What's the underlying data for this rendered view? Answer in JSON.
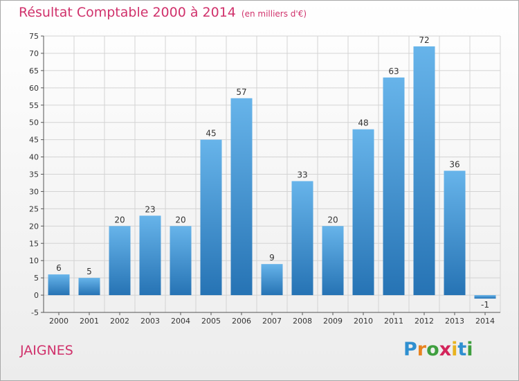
{
  "title": "Résultat Comptable 2000 à 2014",
  "subtitle": "(en milliers d'€)",
  "commune": "JAIGNES",
  "logo": {
    "letters": [
      "P",
      "r",
      "o",
      "x",
      "i",
      "t",
      "i"
    ],
    "colors": [
      "#2f8fd0",
      "#e8831f",
      "#3f9f3f",
      "#d3245a",
      "#e8b21f",
      "#2f8fd0",
      "#3f9f3f"
    ]
  },
  "colors": {
    "title": "#d0316b",
    "bar_light": "#67b4ea",
    "bar_dark": "#2673b4",
    "grid": "#d3d3d3"
  },
  "chart_data": {
    "type": "bar",
    "categories": [
      "2000",
      "2001",
      "2002",
      "2003",
      "2004",
      "2005",
      "2006",
      "2007",
      "2008",
      "2009",
      "2010",
      "2011",
      "2012",
      "2013",
      "2014"
    ],
    "values": [
      6,
      5,
      20,
      23,
      20,
      45,
      57,
      9,
      33,
      20,
      48,
      63,
      72,
      36,
      -1
    ],
    "ylim": [
      -5,
      75
    ],
    "yticks": [
      -5,
      0,
      5,
      10,
      15,
      20,
      25,
      30,
      35,
      40,
      45,
      50,
      55,
      60,
      65,
      70,
      75
    ],
    "grid": true
  }
}
